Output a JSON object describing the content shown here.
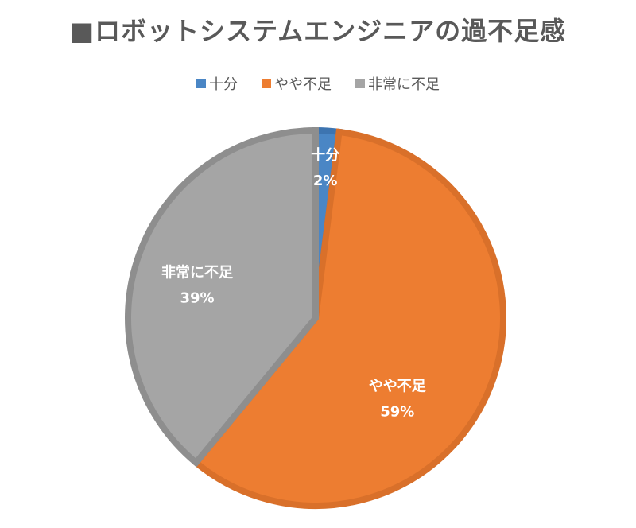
{
  "chart_data": {
    "type": "pie",
    "title": "■ロボットシステムエンジニアの過不足感",
    "categories": [
      "十分",
      "やや不足",
      "非常に不足"
    ],
    "values": [
      2,
      59,
      39
    ],
    "value_labels": [
      "2%",
      "59%",
      "39%"
    ],
    "colors": [
      "#4A86C5",
      "#ED7D31",
      "#A5A5A5"
    ],
    "border_colors": [
      "#3D74B0",
      "#D9702A",
      "#8E8E8E"
    ],
    "legend_position": "top",
    "start_angle": "12 o'clock",
    "direction": "clockwise"
  }
}
